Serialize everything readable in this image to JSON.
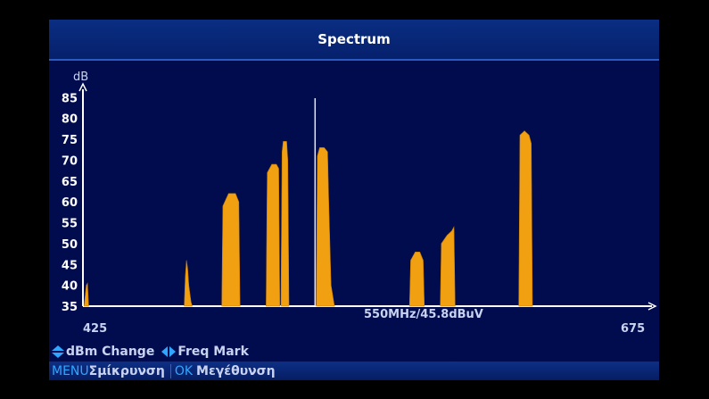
{
  "title": "Spectrum",
  "chart_data": {
    "type": "area",
    "ylabel": "dB",
    "y_ticks": [
      85,
      80,
      75,
      70,
      65,
      60,
      55,
      50,
      45,
      40,
      35
    ],
    "ylim": [
      35,
      87
    ],
    "xlim": [
      425,
      675
    ],
    "x_start_label": "425",
    "x_end_label": "675",
    "marker_label": "550MHz/45.8dBuV",
    "marker_x": 527,
    "color": "#f0a010",
    "series": [
      {
        "x": [
          425.5,
          426.5,
          427,
          427.5
        ],
        "y": [
          35,
          40,
          40.5,
          35
        ]
      },
      {
        "x": [
          469.5,
          470,
          470.5,
          471,
          471.5,
          472,
          472.5,
          473
        ],
        "y": [
          35,
          42,
          46,
          44,
          40,
          38,
          36,
          35
        ]
      },
      {
        "x": [
          486,
          486.5,
          489,
          492,
          493.5,
          494
        ],
        "y": [
          35,
          59,
          62,
          62,
          60,
          35
        ]
      },
      {
        "x": [
          505.5,
          506,
          508,
          510,
          511,
          511.5
        ],
        "y": [
          35,
          67,
          69,
          69,
          68,
          35
        ]
      },
      {
        "x": [
          512,
          512.5,
          513,
          514.5,
          515,
          515.5
        ],
        "y": [
          35,
          72,
          74.5,
          74.5,
          70,
          35
        ]
      },
      {
        "x": [
          527.5,
          528,
          529,
          531,
          532.5,
          533,
          534,
          535.5
        ],
        "y": [
          35,
          71,
          73,
          73,
          72,
          60,
          40,
          35
        ]
      },
      {
        "x": [
          568.5,
          569,
          571,
          573,
          574.5,
          575
        ],
        "y": [
          35,
          46,
          48,
          48,
          46,
          35
        ]
      },
      {
        "x": [
          582,
          582.5,
          585,
          587,
          588,
          588.5
        ],
        "y": [
          35,
          50,
          52,
          53,
          54,
          35
        ]
      },
      {
        "x": [
          616.5,
          617,
          619,
          621,
          622,
          622.5
        ],
        "y": [
          35,
          76,
          77,
          76,
          74,
          35
        ]
      }
    ],
    "grid": false
  },
  "hints": {
    "dbm_change": "dBm Change",
    "freq_mark": "Freq Mark"
  },
  "bottom_bar": {
    "menu_key": "MENU",
    "zoom_out": "Σμίκρυνση",
    "ok_key": "OK",
    "zoom_in": "Μεγέθυνση"
  },
  "colors": {
    "panel_bg": "#000c4e",
    "title_bg": "#0a2e82",
    "spectrum": "#f0a010",
    "key_blue": "#2fa6ff"
  }
}
